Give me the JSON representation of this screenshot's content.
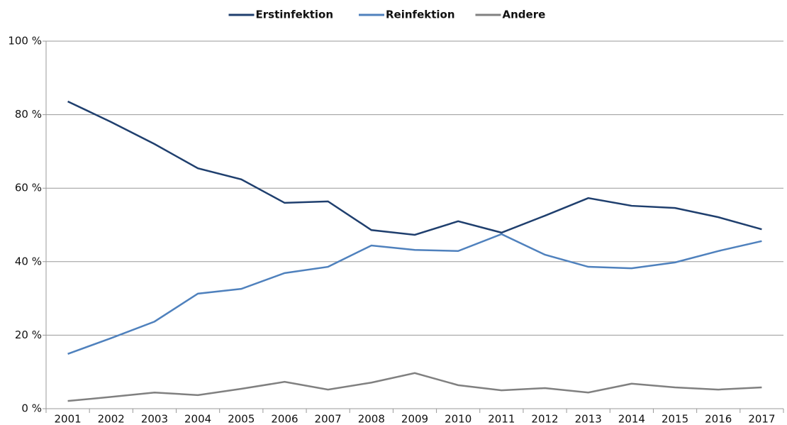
{
  "chart_data": {
    "type": "line",
    "categories": [
      "2001",
      "2002",
      "2003",
      "2004",
      "2005",
      "2006",
      "2007",
      "2008",
      "2009",
      "2010",
      "2011",
      "2012",
      "2013",
      "2014",
      "2015",
      "2016",
      "2017"
    ],
    "series": [
      {
        "name": "Erstinfektion",
        "color": "#1f3f6e",
        "values": [
          83.6,
          78,
          72,
          65.4,
          62.4,
          56,
          56.4,
          48.6,
          47.3,
          51,
          47.9,
          52.5,
          57.3,
          55.2,
          54.6,
          52.1,
          48.8
        ]
      },
      {
        "name": "Reinfektion",
        "color": "#4f81bd",
        "values": [
          14.9,
          19.2,
          23.7,
          31.3,
          32.6,
          36.9,
          38.6,
          44.4,
          43.2,
          42.9,
          47.5,
          41.9,
          38.6,
          38.2,
          39.8,
          42.9,
          45.6
        ]
      },
      {
        "name": "Andere",
        "color": "#808080",
        "values": [
          2.1,
          3.2,
          4.4,
          3.7,
          5.4,
          7.3,
          5.2,
          7.1,
          9.7,
          6.4,
          5.0,
          5.6,
          4.4,
          6.8,
          5.8,
          5.2,
          5.8
        ]
      }
    ],
    "ylim": [
      0,
      100
    ],
    "yticks": [
      {
        "value": 0,
        "label": "0 %"
      },
      {
        "value": 20,
        "label": "20 %"
      },
      {
        "value": 40,
        "label": "40 %"
      },
      {
        "value": 60,
        "label": "60 %"
      },
      {
        "value": 80,
        "label": "80 %"
      },
      {
        "value": 100,
        "label": "100 %"
      }
    ],
    "grid": true,
    "legend": "top"
  }
}
